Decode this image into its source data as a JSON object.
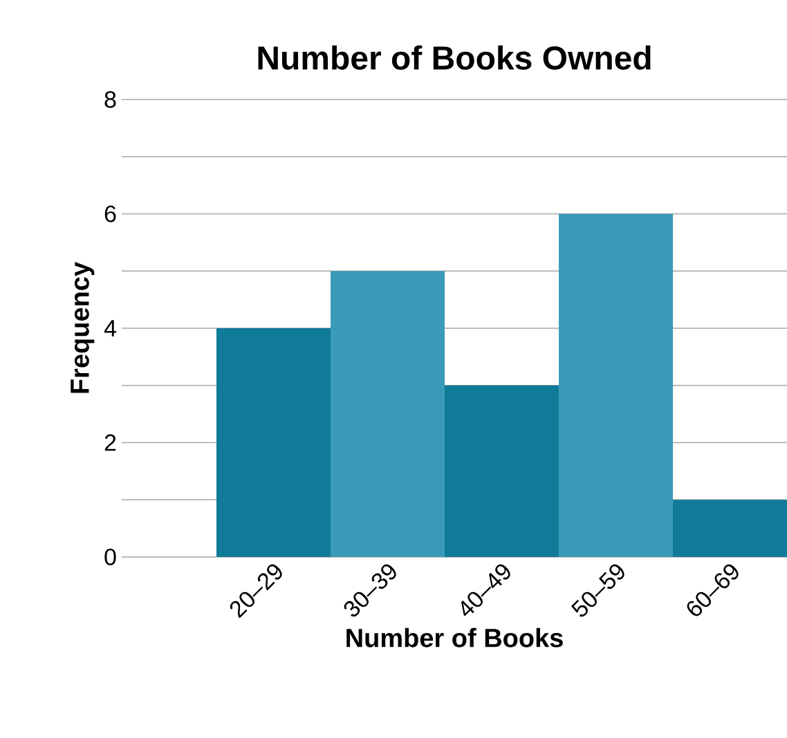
{
  "chart_data": {
    "type": "bar",
    "title": "Number of Books Owned",
    "xlabel": "Number of Books",
    "ylabel": "Frequency",
    "categories": [
      "20–29",
      "30–39",
      "40–49",
      "50–59",
      "60–69"
    ],
    "values": [
      4,
      5,
      3,
      6,
      1
    ],
    "colors": [
      "#0f7b99",
      "#3a9bb8",
      "#0f7b99",
      "#3a9bb8",
      "#0f7b99"
    ],
    "ylim": [
      0,
      8
    ],
    "yticks": [
      0,
      {
        "value": 1,
        "label": null
      },
      2,
      {
        "value": 3,
        "label": null
      },
      4,
      {
        "value": 5,
        "label": null
      },
      6,
      {
        "value": 7,
        "label": null
      },
      8
    ],
    "grid": "y"
  }
}
